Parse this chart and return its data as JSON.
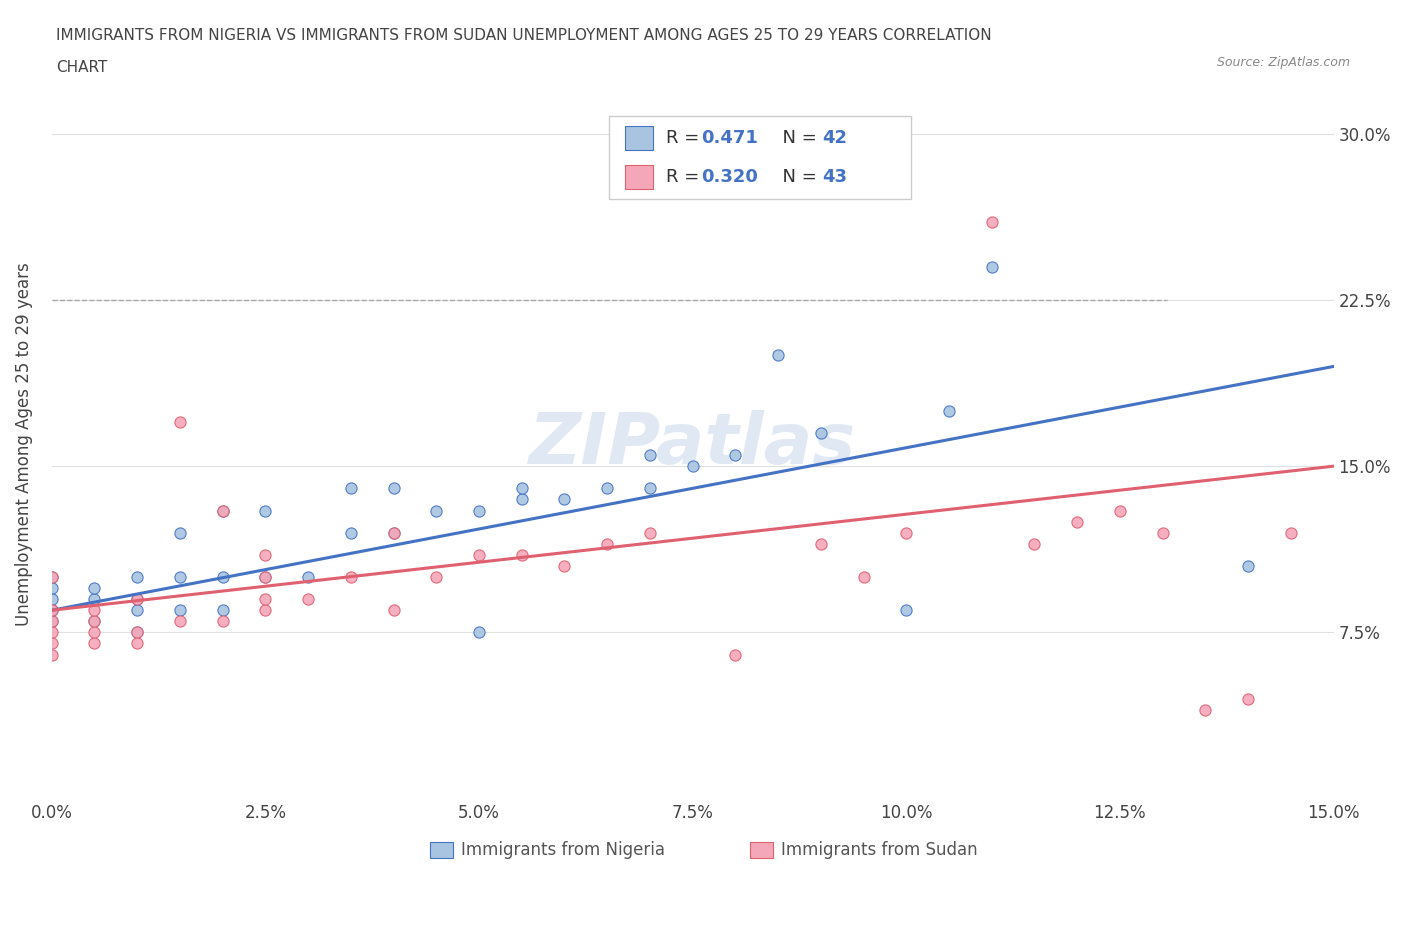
{
  "title_line1": "IMMIGRANTS FROM NIGERIA VS IMMIGRANTS FROM SUDAN UNEMPLOYMENT AMONG AGES 25 TO 29 YEARS CORRELATION",
  "title_line2": "CHART",
  "source": "Source: ZipAtlas.com",
  "ylabel": "Unemployment Among Ages 25 to 29 years",
  "xlim": [
    0.0,
    0.15
  ],
  "ylim": [
    0.0,
    0.32
  ],
  "xtick_positions": [
    0.0,
    0.025,
    0.05,
    0.075,
    0.1,
    0.125,
    0.15
  ],
  "xtick_labels": [
    "0.0%",
    "2.5%",
    "5.0%",
    "7.5%",
    "10.0%",
    "12.5%",
    "15.0%"
  ],
  "ytick_labels": [
    "7.5%",
    "15.0%",
    "22.5%",
    "30.0%"
  ],
  "ytick_values": [
    0.075,
    0.15,
    0.225,
    0.3
  ],
  "nigeria_color": "#a8c4e0",
  "sudan_color": "#f4a7b9",
  "nigeria_line_color": "#4472c4",
  "sudan_line_color": "#e06070",
  "watermark": "ZIPatlas",
  "legend_R_nigeria": "0.471",
  "legend_N_nigeria": "42",
  "legend_R_sudan": "0.320",
  "legend_N_sudan": "43",
  "accent_color": "#4472c4",
  "nigeria_scatter_x": [
    0.0,
    0.0,
    0.0,
    0.0,
    0.0,
    0.005,
    0.005,
    0.005,
    0.01,
    0.01,
    0.01,
    0.01,
    0.015,
    0.015,
    0.015,
    0.02,
    0.02,
    0.02,
    0.025,
    0.025,
    0.03,
    0.035,
    0.035,
    0.04,
    0.04,
    0.045,
    0.05,
    0.05,
    0.055,
    0.055,
    0.06,
    0.065,
    0.07,
    0.07,
    0.075,
    0.08,
    0.085,
    0.09,
    0.1,
    0.105,
    0.11,
    0.14
  ],
  "nigeria_scatter_y": [
    0.08,
    0.085,
    0.09,
    0.095,
    0.1,
    0.08,
    0.09,
    0.095,
    0.075,
    0.085,
    0.09,
    0.1,
    0.085,
    0.1,
    0.12,
    0.085,
    0.1,
    0.13,
    0.1,
    0.13,
    0.1,
    0.12,
    0.14,
    0.12,
    0.14,
    0.13,
    0.075,
    0.13,
    0.135,
    0.14,
    0.135,
    0.14,
    0.14,
    0.155,
    0.15,
    0.155,
    0.2,
    0.165,
    0.085,
    0.175,
    0.24,
    0.105
  ],
  "sudan_scatter_x": [
    0.0,
    0.0,
    0.0,
    0.0,
    0.0,
    0.0,
    0.005,
    0.005,
    0.005,
    0.005,
    0.01,
    0.01,
    0.01,
    0.015,
    0.015,
    0.02,
    0.02,
    0.025,
    0.025,
    0.025,
    0.025,
    0.03,
    0.035,
    0.04,
    0.04,
    0.045,
    0.05,
    0.055,
    0.06,
    0.065,
    0.07,
    0.08,
    0.09,
    0.095,
    0.1,
    0.11,
    0.115,
    0.12,
    0.125,
    0.13,
    0.135,
    0.14,
    0.145
  ],
  "sudan_scatter_y": [
    0.065,
    0.07,
    0.075,
    0.08,
    0.085,
    0.1,
    0.07,
    0.075,
    0.08,
    0.085,
    0.07,
    0.075,
    0.09,
    0.08,
    0.17,
    0.08,
    0.13,
    0.085,
    0.09,
    0.1,
    0.11,
    0.09,
    0.1,
    0.085,
    0.12,
    0.1,
    0.11,
    0.11,
    0.105,
    0.115,
    0.12,
    0.065,
    0.115,
    0.1,
    0.12,
    0.26,
    0.115,
    0.125,
    0.13,
    0.12,
    0.04,
    0.045,
    0.12
  ],
  "nigeria_trend_x": [
    0.0,
    0.15
  ],
  "nigeria_trend_y": [
    0.085,
    0.195
  ],
  "sudan_trend_x": [
    0.0,
    0.15
  ],
  "sudan_trend_y": [
    0.085,
    0.15
  ],
  "dashed_line_y": 0.225,
  "background_color": "#ffffff",
  "grid_color": "#e0e0e0"
}
